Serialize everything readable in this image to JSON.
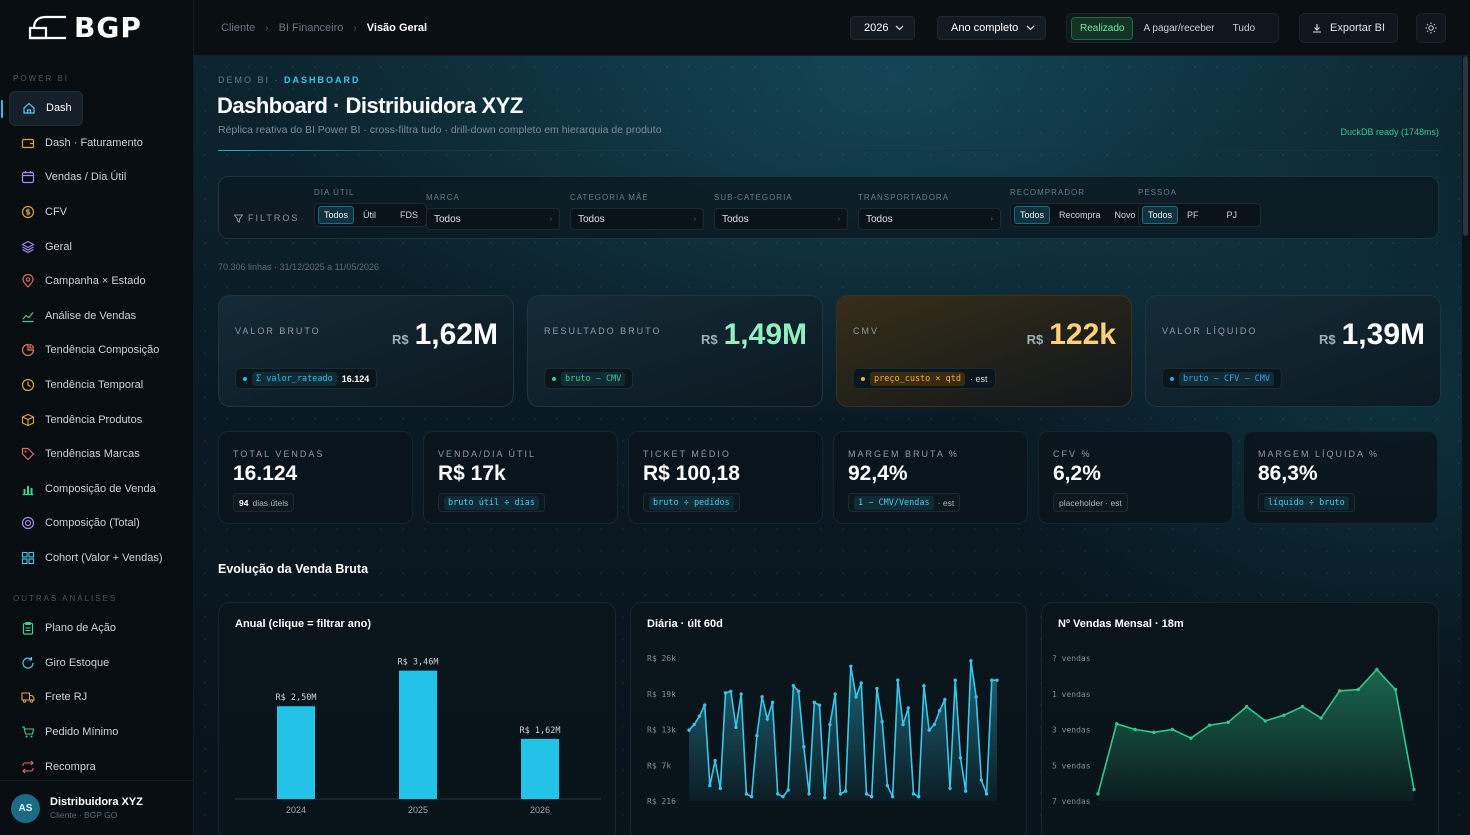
{
  "brand": {
    "logo": "BGP"
  },
  "sidebar": {
    "section_power_bi": "POWER BI",
    "items": [
      {
        "label": "Dash",
        "icon": "home-icon"
      },
      {
        "label": "Dash · Faturamento",
        "icon": "wallet-icon"
      },
      {
        "label": "Vendas / Dia Útil",
        "icon": "calendar-icon"
      },
      {
        "label": "CFV",
        "icon": "coin-icon"
      },
      {
        "label": "Geral",
        "icon": "layers-icon"
      },
      {
        "label": "Campanha × Estado",
        "icon": "map-pin-icon"
      },
      {
        "label": "Análise de Vendas",
        "icon": "trend-line-icon"
      },
      {
        "label": "Tendência Composição",
        "icon": "pie-chart-icon"
      },
      {
        "label": "Tendência Temporal",
        "icon": "clock-icon"
      },
      {
        "label": "Tendência Produtos",
        "icon": "box-icon"
      },
      {
        "label": "Tendências Marcas",
        "icon": "tag-icon"
      },
      {
        "label": "Composição de Venda",
        "icon": "bar-chart-icon"
      },
      {
        "label": "Composição (Total)",
        "icon": "target-icon"
      },
      {
        "label": "Cohort (Valor + Vendas)",
        "icon": "grid-icon"
      }
    ],
    "section_outras": "OUTRAS ANÁLISES",
    "other_items": [
      {
        "label": "Plano de Ação",
        "icon": "clipboard-icon"
      },
      {
        "label": "Giro Estoque",
        "icon": "refresh-icon"
      },
      {
        "label": "Frete RJ",
        "icon": "truck-icon"
      },
      {
        "label": "Pedido Mínimo",
        "icon": "cart-icon"
      },
      {
        "label": "Recompra",
        "icon": "repeat-icon"
      }
    ],
    "user": {
      "initials": "AS",
      "name": "Distribuidora XYZ",
      "sub": "Cliente · BGP GO"
    }
  },
  "topbar": {
    "breadcrumb": [
      "Cliente",
      "BI Financeiro",
      "Visão Geral"
    ],
    "year": "2026",
    "period": "Ano completo",
    "segments": [
      "Realizado",
      "A pagar/receber",
      "Tudo"
    ],
    "export": "Exportar BI"
  },
  "header": {
    "eyebrow_1": "DEMO BI",
    "eyebrow_sep": "·",
    "eyebrow_2": "DASHBOARD",
    "title": "Dashboard · Distribuidora XYZ",
    "subtitle": "Réplica reativa do BI Power BI · cross-filtra tudo · drill-down completo em hierarquia de produto",
    "status": "DuckDB ready (1748ms)"
  },
  "filters": {
    "label": "FILTROS",
    "dia_util": {
      "label": "DIA ÚTIL",
      "options": [
        "Todos",
        "Útil",
        "FDS"
      ]
    },
    "marca": {
      "label": "MARCA",
      "value": "Todos"
    },
    "categoria": {
      "label": "CATEGORIA MÃE",
      "value": "Todos"
    },
    "subcategoria": {
      "label": "SUB-CATEGORIA",
      "value": "Todos"
    },
    "transportadora": {
      "label": "TRANSPORTADORA",
      "value": "Todos"
    },
    "recomprador": {
      "label": "RECOMPRADOR",
      "options": [
        "Todos",
        "Recompra",
        "Novo"
      ]
    },
    "pessoa": {
      "label": "PESSOA",
      "options": [
        "Todos",
        "PF",
        "PJ"
      ]
    }
  },
  "meta": "70.306 linhas · 31/12/2025 a 11/05/2026",
  "kpis": [
    {
      "label": "VALOR BRUTO",
      "cur": "R$",
      "value": "1,62M",
      "formula": "Σ valor_rateado",
      "extra": "16.124",
      "color": "#22c3e6"
    },
    {
      "label": "RESULTADO BRUTO",
      "cur": "R$",
      "value": "1,49M",
      "formula": "bruto − CMV",
      "extra": "",
      "color": "#3fd08a"
    },
    {
      "label": "CMV",
      "cur": "R$",
      "value": "122k",
      "formula": "preço_custo × qtd",
      "extra": "· est",
      "color": "#f0b23a"
    },
    {
      "label": "VALOR LÍQUIDO",
      "cur": "R$",
      "value": "1,39M",
      "formula": "bruto − CFV − CMV",
      "extra": "",
      "color": "#3aa0e6"
    }
  ],
  "stats": [
    {
      "label": "TOTAL VENDAS",
      "value": "16.124",
      "foot_bold": "94",
      "foot": "dias úteis",
      "mono": ""
    },
    {
      "label": "VENDA/DIA ÚTIL",
      "value": "R$ 17k",
      "foot_bold": "",
      "foot": "",
      "mono": "bruto útil ÷ dias"
    },
    {
      "label": "TICKET MÉDIO",
      "value": "R$ 100,18",
      "foot_bold": "",
      "foot": "",
      "mono": "bruto ÷ pedidos"
    },
    {
      "label": "MARGEM BRUTA %",
      "value": "92,4%",
      "foot_bold": "",
      "foot": "· est",
      "mono": "1 − CMV/Vendas"
    },
    {
      "label": "CFV %",
      "value": "6,2%",
      "foot_bold": "",
      "foot": "placeholder · est",
      "mono": ""
    },
    {
      "label": "MARGEM LÍQUIDA %",
      "value": "86,3%",
      "foot_bold": "",
      "foot": "",
      "mono": "líquido ÷ bruto"
    }
  ],
  "section_title": "Evolução da Venda Bruta",
  "chart_data": [
    {
      "type": "bar",
      "title": "Anual (clique = filtrar ano)",
      "categories": [
        "2024",
        "2025",
        "2026"
      ],
      "values": [
        2.5,
        3.46,
        1.62
      ],
      "labels": [
        "R$ 2,50M",
        "R$ 3,46M",
        "R$ 1,62M"
      ],
      "ylim": [
        0,
        3.8
      ],
      "color": "#22c3e6"
    },
    {
      "type": "area",
      "title": "Diária · últ 60d",
      "ytick_labels": [
        "R$ 26k",
        "R$ 19k",
        "R$ 13k",
        "R$ 7k",
        "R$ 216"
      ],
      "yticks": [
        26000,
        19500,
        13000,
        6500,
        216
      ],
      "ylim": [
        216,
        26000
      ],
      "values": [
        13000,
        14000,
        15500,
        17500,
        3000,
        7500,
        2500,
        19700,
        20000,
        13500,
        19500,
        1500,
        1000,
        12000,
        19000,
        15000,
        18000,
        1500,
        1000,
        2200,
        21000,
        20000,
        10000,
        1500,
        18000,
        17500,
        800,
        14000,
        19500,
        1500,
        2000,
        24500,
        19000,
        21500,
        1500,
        1000,
        20500,
        14500,
        3000,
        1000,
        22000,
        14000,
        17000,
        1500,
        1000,
        21000,
        13000,
        14000,
        16500,
        18500,
        2500,
        22000,
        8000,
        2000,
        25500,
        19000,
        4000,
        1500,
        22000,
        22000
      ],
      "color": "#38c6e8"
    },
    {
      "type": "area",
      "title": "Nº Vendas Mensal · 18m",
      "ytick_labels": [
        "? vendas",
        "1 vendas",
        "3 vendas",
        "5 vendas",
        "7 vendas"
      ],
      "values": [
        0.05,
        0.54,
        0.5,
        0.48,
        0.5,
        0.44,
        0.53,
        0.55,
        0.66,
        0.56,
        0.6,
        0.66,
        0.58,
        0.77,
        0.78,
        0.92,
        0.78,
        0.08
      ],
      "ylim": [
        0,
        1
      ],
      "color": "#2fc98a"
    }
  ]
}
